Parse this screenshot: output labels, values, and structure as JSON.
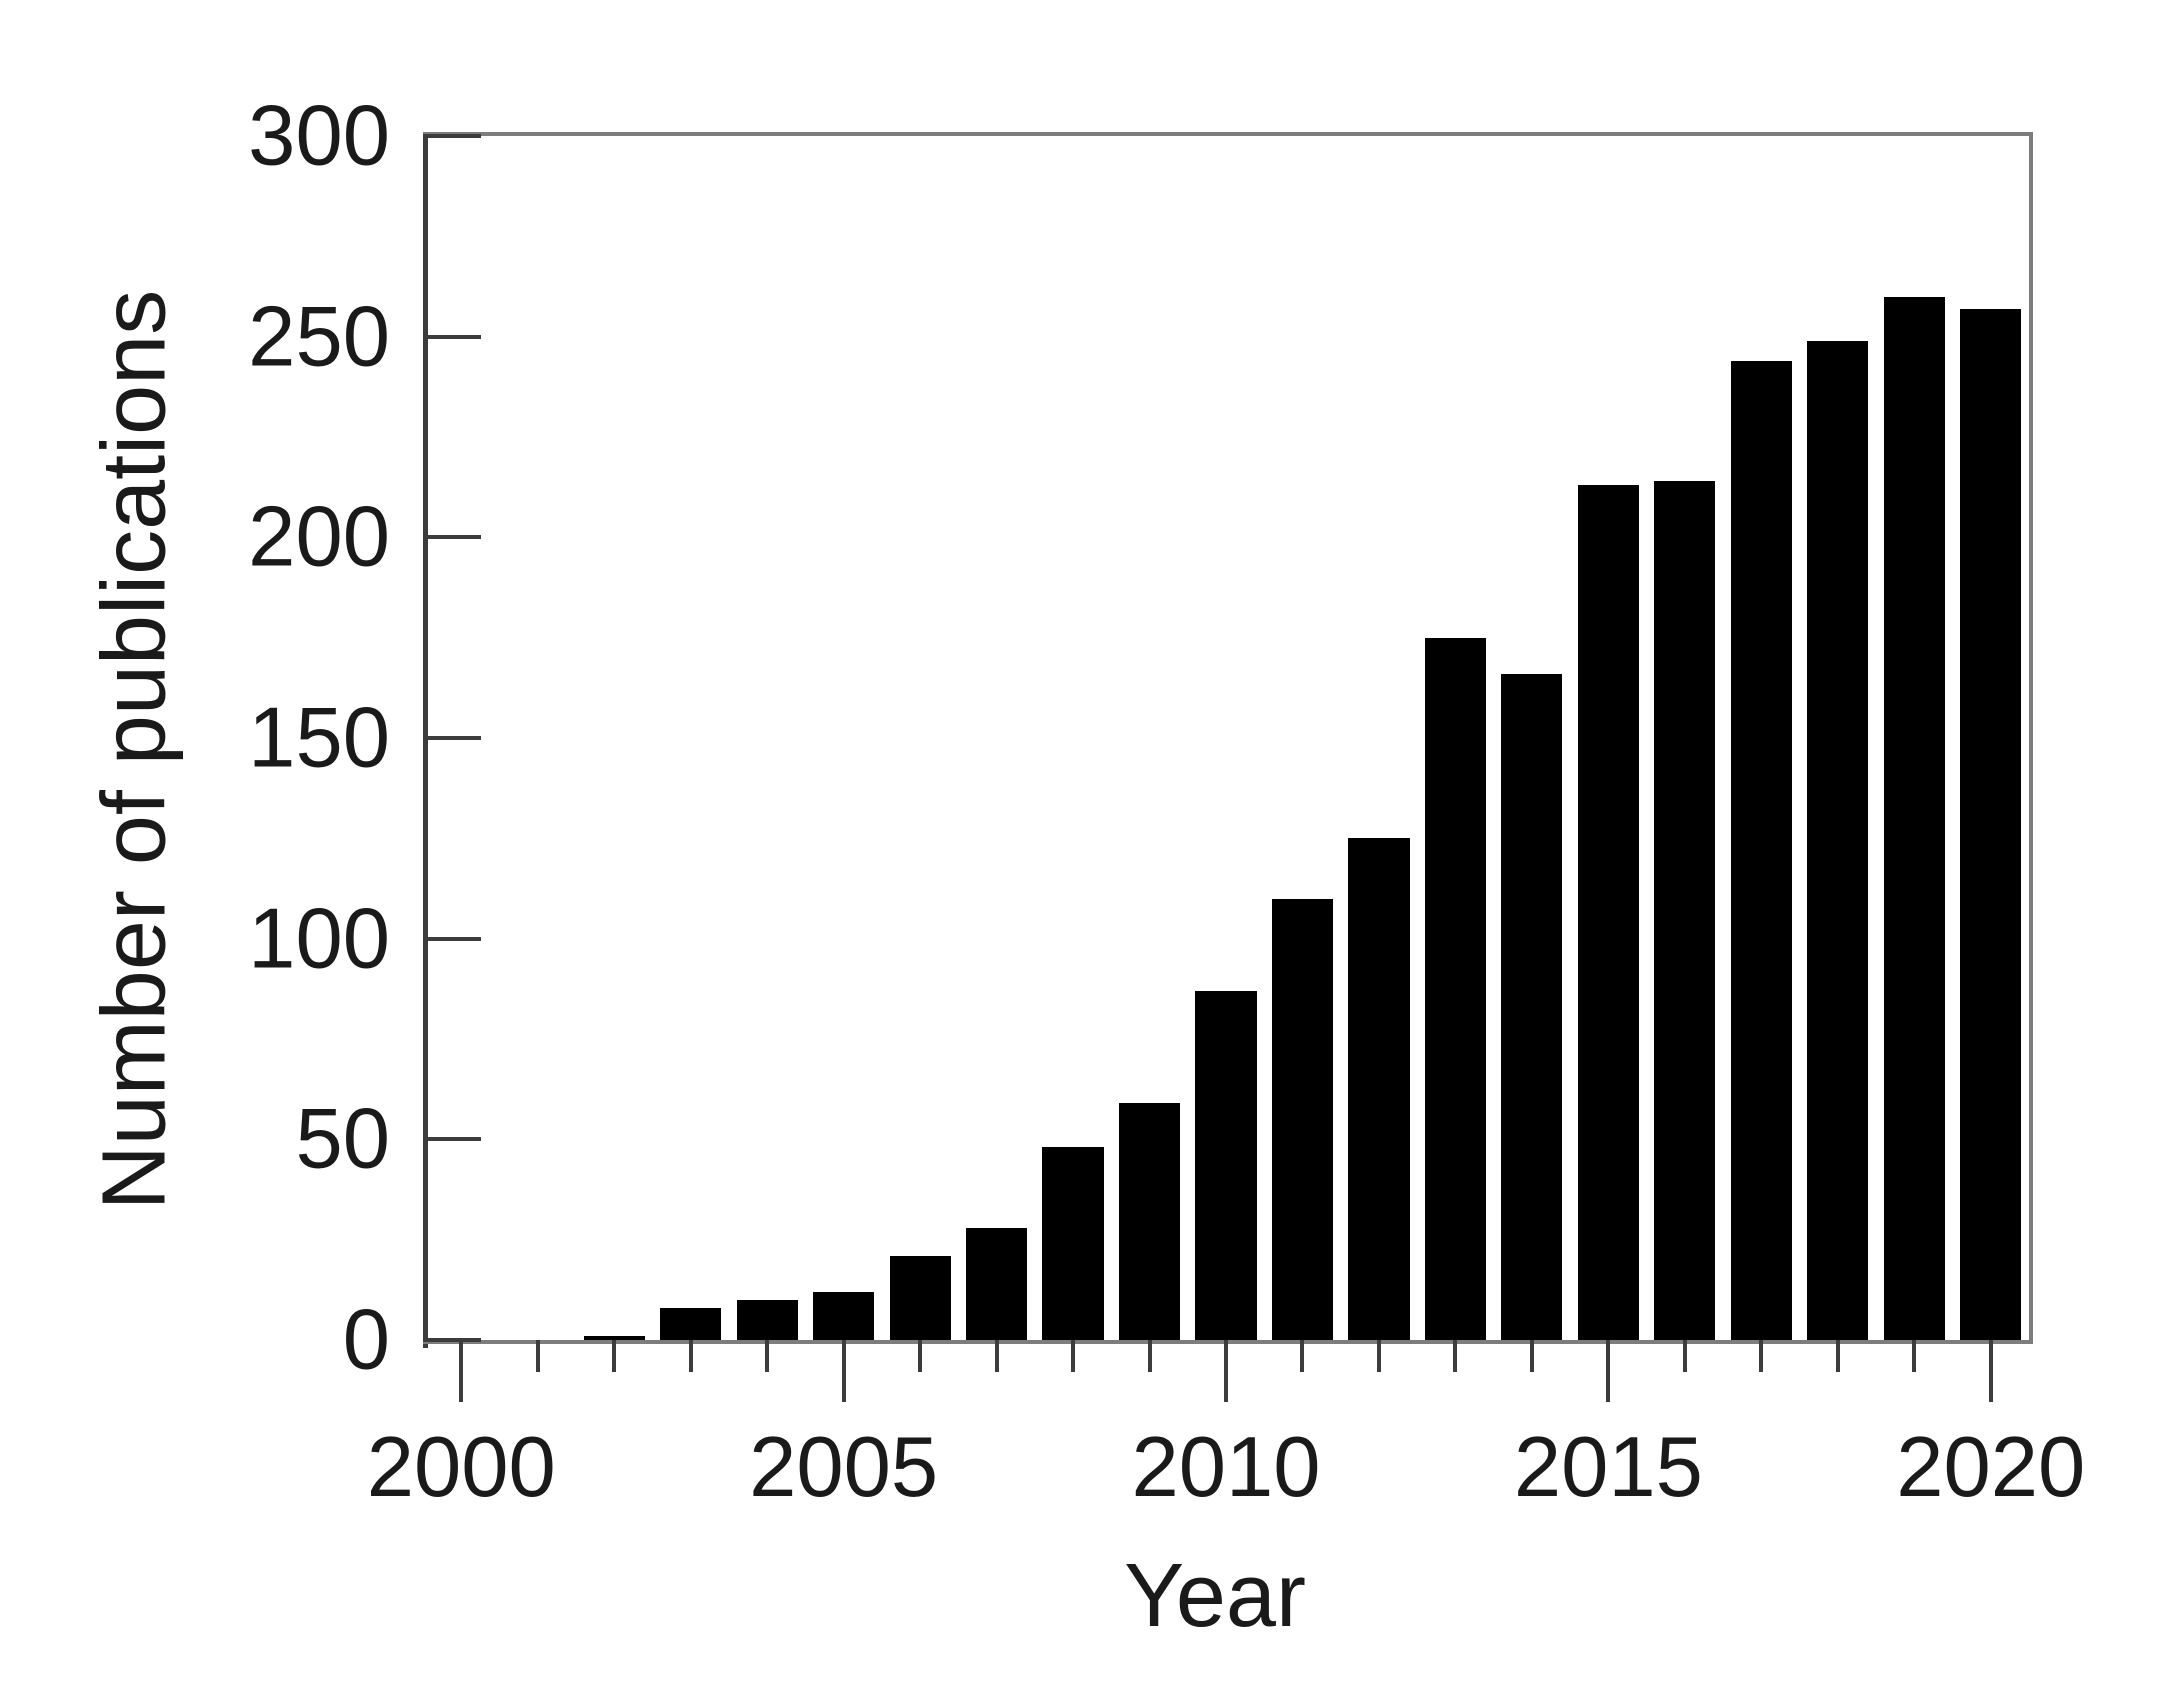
{
  "figure": {
    "y_axis_title": "Number of publications",
    "x_axis_title": "Year"
  },
  "chart_data": {
    "type": "bar",
    "title": "",
    "xlabel": "Year",
    "ylabel": "Number of publications",
    "categories": [
      2000,
      2001,
      2002,
      2003,
      2004,
      2005,
      2006,
      2007,
      2008,
      2009,
      2010,
      2011,
      2012,
      2013,
      2014,
      2015,
      2016,
      2017,
      2018,
      2019,
      2020
    ],
    "values": [
      0,
      0,
      1,
      8,
      10,
      12,
      21,
      28,
      48,
      59,
      87,
      110,
      125,
      175,
      166,
      213,
      214,
      244,
      249,
      260,
      257
    ],
    "xlim": [
      1999.5,
      2020.5
    ],
    "ylim": [
      0,
      300
    ],
    "yticks": [
      0,
      50,
      100,
      150,
      200,
      250,
      300
    ],
    "xticks_major": [
      2000,
      2005,
      2010,
      2015,
      2020
    ],
    "xtick_minor_years": [
      2001,
      2002,
      2003,
      2004,
      2006,
      2007,
      2008,
      2009,
      2011,
      2012,
      2013,
      2014,
      2016,
      2017,
      2018,
      2019
    ],
    "bar_width_years": 0.8,
    "bar_color": "#000000",
    "grid": false,
    "legend": "none"
  },
  "colors": {
    "bar": "#000000",
    "axis_dark": "#3c3c3c",
    "frame_gray": "#7d7d7d",
    "text": "#1a1a1a",
    "background": "#ffffff"
  }
}
